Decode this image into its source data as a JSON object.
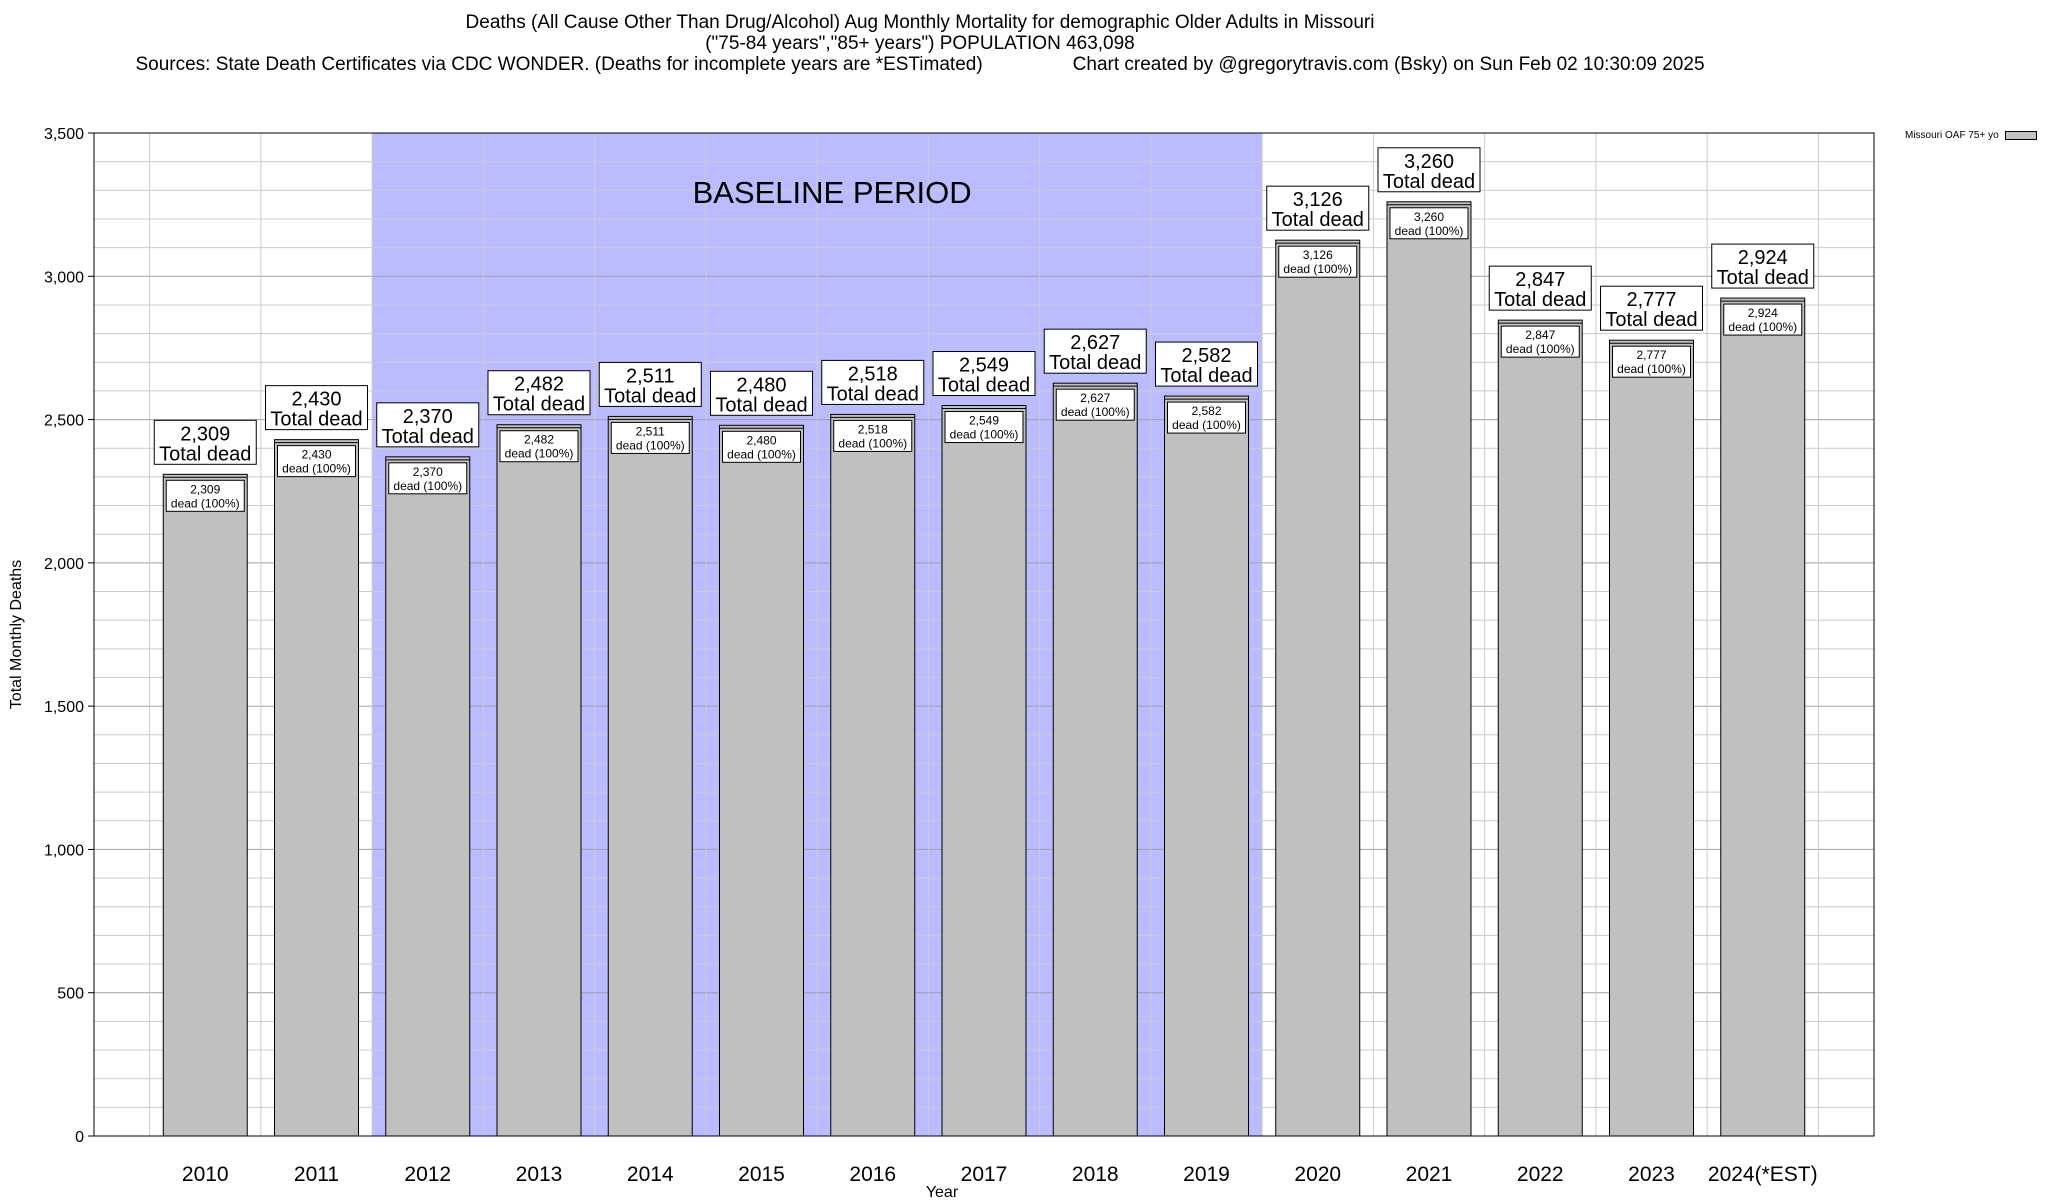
{
  "title": {
    "line1": "Deaths (All Cause Other Than Drug/Alcohol) Aug Monthly Mortality for demographic Older Adults in Missouri",
    "line2": "(\"75-84 years\",\"85+ years\") POPULATION 463,098",
    "sources": "Sources: State Death Certificates via CDC WONDER. (Deaths for incomplete years are *ESTimated)",
    "credit": "Chart created by @gregorytravis.com (Bsky) on Sun Feb 02 10:30:09 2025"
  },
  "chart_data": {
    "type": "bar",
    "categories": [
      "2010",
      "2011",
      "2012",
      "2013",
      "2014",
      "2015",
      "2016",
      "2017",
      "2018",
      "2019",
      "2020",
      "2021",
      "2022",
      "2023",
      "2024(*EST)"
    ],
    "values": [
      2309,
      2430,
      2370,
      2482,
      2511,
      2480,
      2518,
      2549,
      2627,
      2582,
      3126,
      3260,
      2847,
      2777,
      2924
    ],
    "value_labels": [
      "2,309",
      "2,430",
      "2,370",
      "2,482",
      "2,511",
      "2,480",
      "2,518",
      "2,549",
      "2,627",
      "2,582",
      "3,126",
      "3,260",
      "2,847",
      "2,777",
      "2,924"
    ],
    "top_label_suffix": "Total dead",
    "inner_label_suffix": "dead (100%)",
    "xlabel": "Year",
    "ylabel": "Total Monthly Deaths",
    "ylim": [
      0,
      3500
    ],
    "yticks": [
      0,
      500,
      1000,
      1500,
      2000,
      2500,
      3000,
      3500
    ],
    "ytick_labels": [
      "0",
      "500",
      "1,000",
      "1,500",
      "2,000",
      "2,500",
      "3,000",
      "3,500"
    ],
    "minor_grid_step": 100,
    "grid": true,
    "baseline": {
      "label": "BASELINE PERIOD",
      "from_category": "2012",
      "to_category": "2019",
      "color": "#bbbbff"
    },
    "bar_color": "#c0c0c0",
    "legend": {
      "position": "top-right",
      "label": "Missouri OAF 75+ yo"
    }
  }
}
